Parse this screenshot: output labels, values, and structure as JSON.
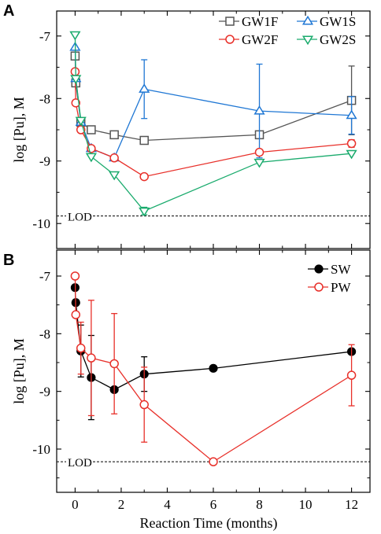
{
  "chart_data": [
    {
      "type": "line",
      "panel": "A",
      "ylabel": "log [Pu], M",
      "xlabel": "",
      "xlim": [
        -0.8,
        12.8
      ],
      "ylim": [
        -10.4,
        -6.6
      ],
      "yticks": [
        -10,
        -9,
        -8,
        -7
      ],
      "xticks": [
        0,
        2,
        4,
        6,
        8,
        10,
        12
      ],
      "show_xtick_labels": false,
      "lod": {
        "label": "LOD",
        "value": -9.88
      },
      "legend": {
        "placement": "top-right",
        "columns": 2
      },
      "series": [
        {
          "name": "GW1F",
          "marker": "square",
          "color": "#555555",
          "x": [
            0,
            0.03,
            0.25,
            0.7,
            1.7,
            3,
            8,
            12
          ],
          "y": [
            -7.32,
            -7.75,
            -8.38,
            -8.5,
            -8.58,
            -8.67,
            -8.58,
            -8.03
          ],
          "err": [
            0,
            0,
            0,
            0,
            0,
            0,
            0,
            0.55
          ]
        },
        {
          "name": "GW1S",
          "marker": "triangle-up",
          "color": "#1f77d4",
          "x": [
            0,
            0.03,
            0.25,
            0.7,
            1.7,
            3,
            8,
            12
          ],
          "y": [
            -7.18,
            -7.68,
            -8.38,
            -8.8,
            -8.95,
            -7.85,
            -8.2,
            -8.27
          ],
          "err": [
            0,
            0,
            0,
            0,
            0,
            0.47,
            0.75,
            0.3
          ]
        },
        {
          "name": "GW2F",
          "marker": "circle",
          "color": "#e8302a",
          "x": [
            0,
            0.03,
            0.25,
            0.7,
            1.7,
            3,
            8,
            12
          ],
          "y": [
            -7.57,
            -8.07,
            -8.5,
            -8.8,
            -8.95,
            -9.25,
            -8.86,
            -8.72
          ],
          "err": [
            0,
            0,
            0,
            0,
            0,
            0,
            0,
            0.06
          ]
        },
        {
          "name": "GW2S",
          "marker": "triangle-down",
          "color": "#1aab6d",
          "x": [
            0,
            0.03,
            0.25,
            0.7,
            1.7,
            3,
            8,
            12
          ],
          "y": [
            -6.98,
            -7.68,
            -8.35,
            -8.93,
            -9.22,
            -9.8,
            -9.02,
            -8.88
          ],
          "err": [
            0,
            0,
            0,
            0,
            0,
            0.06,
            0,
            0
          ]
        }
      ]
    },
    {
      "type": "line",
      "panel": "B",
      "ylabel": "log [Pu], M",
      "xlabel": "Reaction Time (months)",
      "xlim": [
        -0.8,
        12.8
      ],
      "ylim": [
        -10.75,
        -6.55
      ],
      "yticks": [
        -10,
        -9,
        -8,
        -7
      ],
      "xticks": [
        0,
        2,
        4,
        6,
        8,
        10,
        12
      ],
      "xtick_labels": [
        "0",
        "2",
        "4",
        "6",
        "8",
        "10",
        "12"
      ],
      "show_xtick_labels": true,
      "lod": {
        "label": "LOD",
        "value": -10.22
      },
      "legend": {
        "placement": "top-right",
        "columns": 1
      },
      "series": [
        {
          "name": "SW",
          "marker": "filled-circle",
          "color": "#000000",
          "x": [
            0,
            0.03,
            0.25,
            0.7,
            1.7,
            3,
            6,
            12
          ],
          "y": [
            -7.2,
            -7.46,
            -8.3,
            -8.76,
            -8.97,
            -8.7,
            -8.6,
            -8.31
          ],
          "err": [
            0,
            0,
            0.45,
            0.73,
            0,
            0.3,
            0,
            0
          ]
        },
        {
          "name": "PW",
          "marker": "circle",
          "color": "#e8302a",
          "x": [
            0,
            0.03,
            0.25,
            0.7,
            1.7,
            3,
            6,
            12
          ],
          "y": [
            -7.0,
            -7.67,
            -8.25,
            -8.42,
            -8.52,
            -9.23,
            -10.22,
            -8.72
          ],
          "err": [
            0,
            0,
            0.45,
            1.0,
            0.87,
            0.65,
            0,
            0.53
          ]
        }
      ]
    }
  ]
}
